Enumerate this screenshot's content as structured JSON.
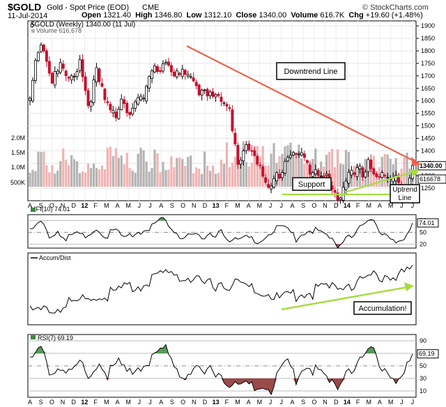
{
  "header": {
    "symbol": "$GOLD",
    "name": "Gold - Spot Price (EOD)",
    "exchange": "CME",
    "date": "11-Jul-2014",
    "open_label": "Open",
    "open": "1321.40",
    "high_label": "High",
    "high": "1346.80",
    "low_label": "Low",
    "low": "1312.10",
    "close_label": "Close",
    "close": "1340.00",
    "volume_label": "Volume",
    "volume": "616.7K",
    "chg_label": "Chg",
    "chg": "+19.60 (+1.48%)",
    "brand": "© StockCharts.com"
  },
  "colors": {
    "up": "#000000",
    "down": "#c8102e",
    "trend_down": "#f06048",
    "trend_up": "#a8dc40",
    "vol_down": "#f0b4b4",
    "vol_up": "#b4b4b4",
    "green_fill": "#3a8a3a",
    "red_fill": "#8a2a2a"
  },
  "chart_data": [
    {
      "type": "candlestick",
      "title": "$GOLD (Weekly) 1340.00 (11 Jul)",
      "volume_legend": "Volume 616,678",
      "ylim": [
        1200,
        1920
      ],
      "yticks": [
        1250,
        1300,
        1350,
        1400,
        1450,
        1500,
        1550,
        1600,
        1650,
        1700,
        1750,
        1800,
        1850,
        1900
      ],
      "last_label": "1340.00",
      "volume_ticks": [
        "2.0M",
        "1.5M",
        "1.0M",
        "500K"
      ],
      "volume_last_label": "616678",
      "x_labels": [
        "A",
        "S",
        "O",
        "N",
        "D",
        "12",
        "F",
        "M",
        "A",
        "M",
        "J",
        "J",
        "A",
        "S",
        "O",
        "N",
        "D",
        "13",
        "F",
        "M",
        "A",
        "M",
        "J",
        "J",
        "A",
        "S",
        "O",
        "N",
        "D",
        "14",
        "F",
        "M",
        "A",
        "M",
        "J",
        "J"
      ],
      "anchors_weekly_close": [
        [
          0,
          1620
        ],
        [
          2,
          1790
        ],
        [
          4,
          1860
        ],
        [
          6,
          1780
        ],
        [
          8,
          1700
        ],
        [
          11,
          1750
        ],
        [
          14,
          1680
        ],
        [
          16,
          1730
        ],
        [
          18,
          1780
        ],
        [
          21,
          1600
        ],
        [
          24,
          1720
        ],
        [
          26,
          1650
        ],
        [
          28,
          1580
        ],
        [
          31,
          1560
        ],
        [
          33,
          1640
        ],
        [
          36,
          1570
        ],
        [
          39,
          1620
        ],
        [
          41,
          1600
        ],
        [
          43,
          1710
        ],
        [
          46,
          1740
        ],
        [
          48,
          1780
        ],
        [
          50,
          1760
        ],
        [
          53,
          1720
        ],
        [
          57,
          1710
        ],
        [
          60,
          1660
        ],
        [
          62,
          1660
        ],
        [
          66,
          1660
        ],
        [
          69,
          1600
        ],
        [
          72,
          1570
        ],
        [
          74,
          1420
        ],
        [
          75,
          1380
        ],
        [
          78,
          1440
        ],
        [
          80,
          1440
        ],
        [
          82,
          1380
        ],
        [
          84,
          1290
        ],
        [
          86,
          1250
        ],
        [
          89,
          1310
        ],
        [
          91,
          1350
        ],
        [
          93,
          1400
        ],
        [
          96,
          1420
        ],
        [
          99,
          1380
        ],
        [
          101,
          1320
        ],
        [
          104,
          1310
        ],
        [
          107,
          1330
        ],
        [
          109,
          1270
        ],
        [
          111,
          1230
        ],
        [
          113,
          1250
        ],
        [
          115,
          1300
        ],
        [
          117,
          1320
        ],
        [
          120,
          1330
        ],
        [
          122,
          1380
        ],
        [
          124,
          1330
        ],
        [
          127,
          1310
        ],
        [
          130,
          1300
        ],
        [
          132,
          1290
        ],
        [
          134,
          1260
        ],
        [
          136,
          1290
        ],
        [
          137,
          1320
        ],
        [
          138,
          1340
        ]
      ],
      "annotations": {
        "downtrend": "Downtrend Line",
        "support": "Support",
        "uptrend": "Uptrend Line"
      }
    },
    {
      "type": "line",
      "title": "MFI(10) 74.01",
      "ylim": [
        10,
        95
      ],
      "yticks": [
        20,
        50,
        80
      ],
      "last_label": "74.01",
      "anchors": [
        [
          0,
          55
        ],
        [
          4,
          82
        ],
        [
          7,
          45
        ],
        [
          10,
          60
        ],
        [
          13,
          35
        ],
        [
          17,
          55
        ],
        [
          20,
          40
        ],
        [
          24,
          66
        ],
        [
          27,
          45
        ],
        [
          31,
          60
        ],
        [
          34,
          35
        ],
        [
          38,
          55
        ],
        [
          42,
          62
        ],
        [
          45,
          70
        ],
        [
          48,
          88
        ],
        [
          51,
          60
        ],
        [
          55,
          45
        ],
        [
          58,
          55
        ],
        [
          62,
          35
        ],
        [
          66,
          48
        ],
        [
          69,
          62
        ],
        [
          72,
          40
        ],
        [
          75,
          30
        ],
        [
          78,
          45
        ],
        [
          82,
          30
        ],
        [
          86,
          50
        ],
        [
          90,
          70
        ],
        [
          93,
          60
        ],
        [
          96,
          40
        ],
        [
          99,
          55
        ],
        [
          102,
          62
        ],
        [
          105,
          50
        ],
        [
          108,
          40
        ],
        [
          111,
          18
        ],
        [
          114,
          45
        ],
        [
          117,
          55
        ],
        [
          120,
          70
        ],
        [
          123,
          82
        ],
        [
          125,
          70
        ],
        [
          128,
          52
        ],
        [
          131,
          40
        ],
        [
          134,
          28
        ],
        [
          136,
          45
        ],
        [
          138,
          74
        ]
      ]
    },
    {
      "type": "line",
      "title": "Accum/Dist",
      "anchors": [
        [
          0,
          18
        ],
        [
          6,
          22
        ],
        [
          12,
          26
        ],
        [
          18,
          34
        ],
        [
          24,
          40
        ],
        [
          30,
          44
        ],
        [
          36,
          52
        ],
        [
          42,
          58
        ],
        [
          46,
          64
        ],
        [
          50,
          72
        ],
        [
          54,
          70
        ],
        [
          58,
          64
        ],
        [
          62,
          58
        ],
        [
          66,
          56
        ],
        [
          70,
          60
        ],
        [
          74,
          56
        ],
        [
          78,
          54
        ],
        [
          82,
          48
        ],
        [
          86,
          44
        ],
        [
          90,
          36
        ],
        [
          94,
          42
        ],
        [
          98,
          44
        ],
        [
          102,
          46
        ],
        [
          106,
          50
        ],
        [
          110,
          52
        ],
        [
          114,
          56
        ],
        [
          118,
          60
        ],
        [
          122,
          62
        ],
        [
          126,
          70
        ],
        [
          130,
          68
        ],
        [
          134,
          72
        ],
        [
          138,
          78
        ]
      ],
      "annotation": "Accumulation!"
    },
    {
      "type": "line",
      "title": "RSI(7) 69.19",
      "ylim": [
        0,
        100
      ],
      "yticks": [
        10,
        30,
        50,
        70,
        90
      ],
      "last_label": "69.19",
      "anchors": [
        [
          0,
          60
        ],
        [
          4,
          85
        ],
        [
          7,
          45
        ],
        [
          11,
          55
        ],
        [
          14,
          40
        ],
        [
          18,
          62
        ],
        [
          21,
          35
        ],
        [
          25,
          62
        ],
        [
          28,
          42
        ],
        [
          32,
          60
        ],
        [
          35,
          40
        ],
        [
          38,
          52
        ],
        [
          42,
          58
        ],
        [
          46,
          70
        ],
        [
          49,
          82
        ],
        [
          52,
          55
        ],
        [
          56,
          38
        ],
        [
          59,
          50
        ],
        [
          63,
          42
        ],
        [
          66,
          50
        ],
        [
          69,
          40
        ],
        [
          72,
          30
        ],
        [
          75,
          18
        ],
        [
          78,
          28
        ],
        [
          81,
          20
        ],
        [
          84,
          25
        ],
        [
          87,
          15
        ],
        [
          90,
          48
        ],
        [
          93,
          60
        ],
        [
          96,
          35
        ],
        [
          99,
          55
        ],
        [
          102,
          50
        ],
        [
          105,
          40
        ],
        [
          108,
          28
        ],
        [
          111,
          20
        ],
        [
          114,
          48
        ],
        [
          117,
          55
        ],
        [
          120,
          65
        ],
        [
          123,
          80
        ],
        [
          126,
          62
        ],
        [
          129,
          45
        ],
        [
          132,
          35
        ],
        [
          134,
          32
        ],
        [
          136,
          55
        ],
        [
          138,
          69
        ]
      ]
    }
  ]
}
